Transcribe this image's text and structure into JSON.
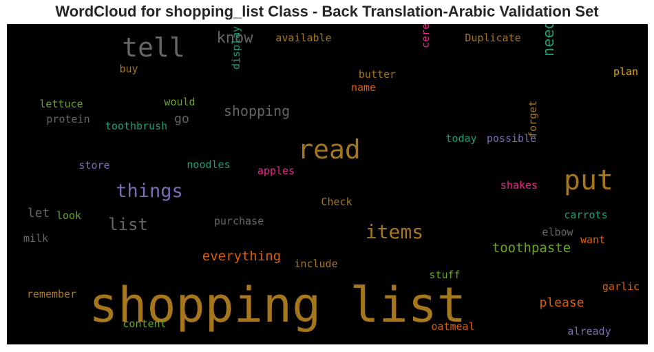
{
  "title": "WordCloud for shopping_list Class - Back Translation-Arabic Validation Set",
  "chart_data": {
    "type": "wordcloud",
    "background": "#000000",
    "words": [
      {
        "text": "shopping list",
        "color": "#a6761d"
      },
      {
        "text": "read",
        "color": "#a6761d"
      },
      {
        "text": "put",
        "color": "#a6761d"
      },
      {
        "text": "tell",
        "color": "#666666"
      },
      {
        "text": "things",
        "color": "#7570b3"
      },
      {
        "text": "items",
        "color": "#a6761d"
      },
      {
        "text": "list",
        "color": "#666666"
      },
      {
        "text": "know",
        "color": "#666666"
      },
      {
        "text": "need",
        "color": "#1b9e77"
      },
      {
        "text": "shopping",
        "color": "#666666"
      },
      {
        "text": "toothpaste",
        "color": "#66a61e"
      },
      {
        "text": "everything",
        "color": "#d95f02"
      },
      {
        "text": "please",
        "color": "#d95f02"
      },
      {
        "text": "go",
        "color": "#666666"
      },
      {
        "text": "let",
        "color": "#666666"
      },
      {
        "text": "available",
        "color": "#a6761d"
      },
      {
        "text": "Duplicate",
        "color": "#a6761d"
      },
      {
        "text": "display",
        "color": "#1b9e77"
      },
      {
        "text": "cereal",
        "color": "#e7298a"
      },
      {
        "text": "buy",
        "color": "#a6761d"
      },
      {
        "text": "butter",
        "color": "#a6761d"
      },
      {
        "text": "name",
        "color": "#d95f02"
      },
      {
        "text": "plan",
        "color": "#e6ab02"
      },
      {
        "text": "lettuce",
        "color": "#66a61e"
      },
      {
        "text": "would",
        "color": "#66a61e"
      },
      {
        "text": "protein",
        "color": "#666666"
      },
      {
        "text": "toothbrush",
        "color": "#1b9e77"
      },
      {
        "text": "today",
        "color": "#1b9e77"
      },
      {
        "text": "possible",
        "color": "#7570b3"
      },
      {
        "text": "forget",
        "color": "#a6761d"
      },
      {
        "text": "store",
        "color": "#7570b3"
      },
      {
        "text": "noodles",
        "color": "#1b9e77"
      },
      {
        "text": "apples",
        "color": "#e7298a"
      },
      {
        "text": "shakes",
        "color": "#e7298a"
      },
      {
        "text": "Check",
        "color": "#a6761d"
      },
      {
        "text": "look",
        "color": "#66a61e"
      },
      {
        "text": "purchase",
        "color": "#666666"
      },
      {
        "text": "carrots",
        "color": "#1b9e77"
      },
      {
        "text": "elbow",
        "color": "#666666"
      },
      {
        "text": "milk",
        "color": "#666666"
      },
      {
        "text": "want",
        "color": "#d95f02"
      },
      {
        "text": "include",
        "color": "#a6761d"
      },
      {
        "text": "stuff",
        "color": "#66a61e"
      },
      {
        "text": "garlic",
        "color": "#d95f02"
      },
      {
        "text": "remember",
        "color": "#a6761d"
      },
      {
        "text": "content",
        "color": "#66a61e"
      },
      {
        "text": "oatmeal",
        "color": "#d95f02"
      },
      {
        "text": "already",
        "color": "#7570b3"
      }
    ]
  }
}
